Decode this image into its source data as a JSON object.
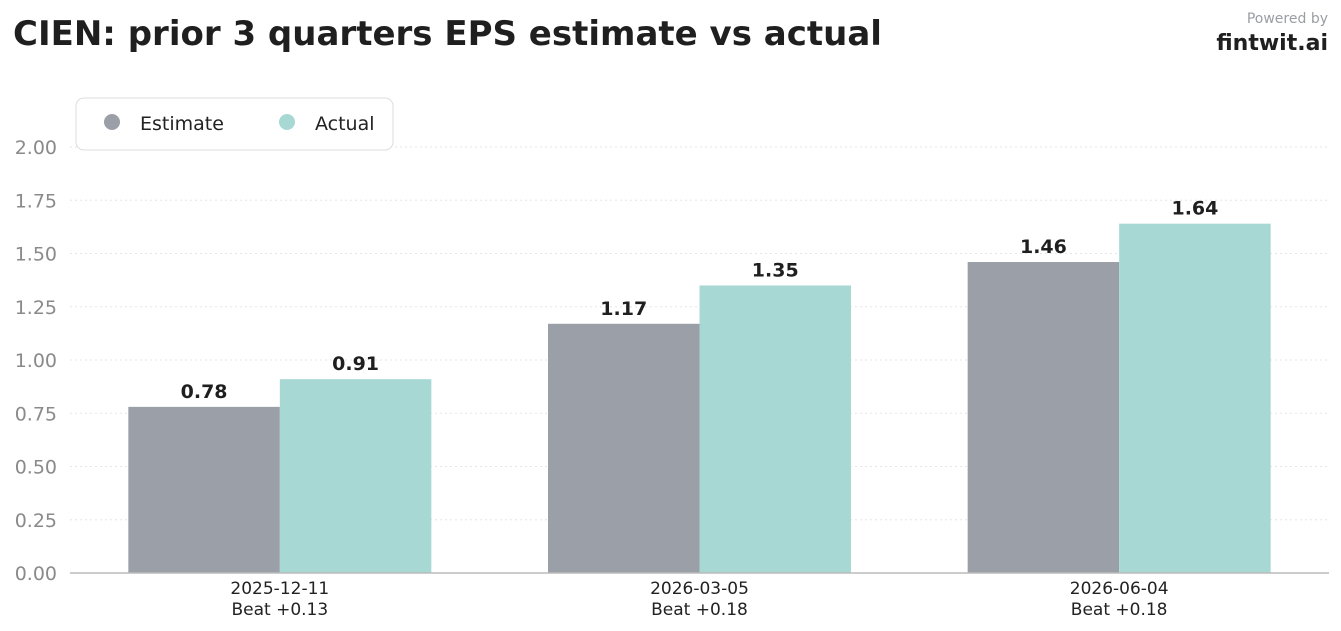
{
  "header": {
    "title": "CIEN: prior 3 quarters EPS estimate vs actual",
    "powered_by": "Powered by",
    "brand": "fintwit.ai"
  },
  "colors": {
    "estimate": "#9b9fa7",
    "actual": "#a8d8d4",
    "axis": "#bbbbbb",
    "grid": "#e6e6e6",
    "tick_text": "#8a8a8a",
    "label_text": "#1f1f1f"
  },
  "chart_data": {
    "type": "bar",
    "title": "CIEN: prior 3 quarters EPS estimate vs actual",
    "categories": [
      "2025-12-11",
      "2026-03-05",
      "2026-06-04"
    ],
    "category_sublabels": [
      "Beat +0.13",
      "Beat +0.18",
      "Beat +0.18"
    ],
    "series": [
      {
        "name": "Estimate",
        "values": [
          0.78,
          1.17,
          1.46
        ]
      },
      {
        "name": "Actual",
        "values": [
          0.91,
          1.35,
          1.64
        ]
      }
    ],
    "data_labels": [
      [
        "0.78",
        "1.17",
        "1.46"
      ],
      [
        "0.91",
        "1.35",
        "1.64"
      ]
    ],
    "y_ticks": [
      "0.00",
      "0.25",
      "0.50",
      "0.75",
      "1.00",
      "1.25",
      "1.50",
      "1.75",
      "2.00"
    ],
    "ylim": [
      0,
      2.0
    ],
    "xlabel": "",
    "ylabel": "",
    "grid": true,
    "legend_position": "top-left"
  }
}
